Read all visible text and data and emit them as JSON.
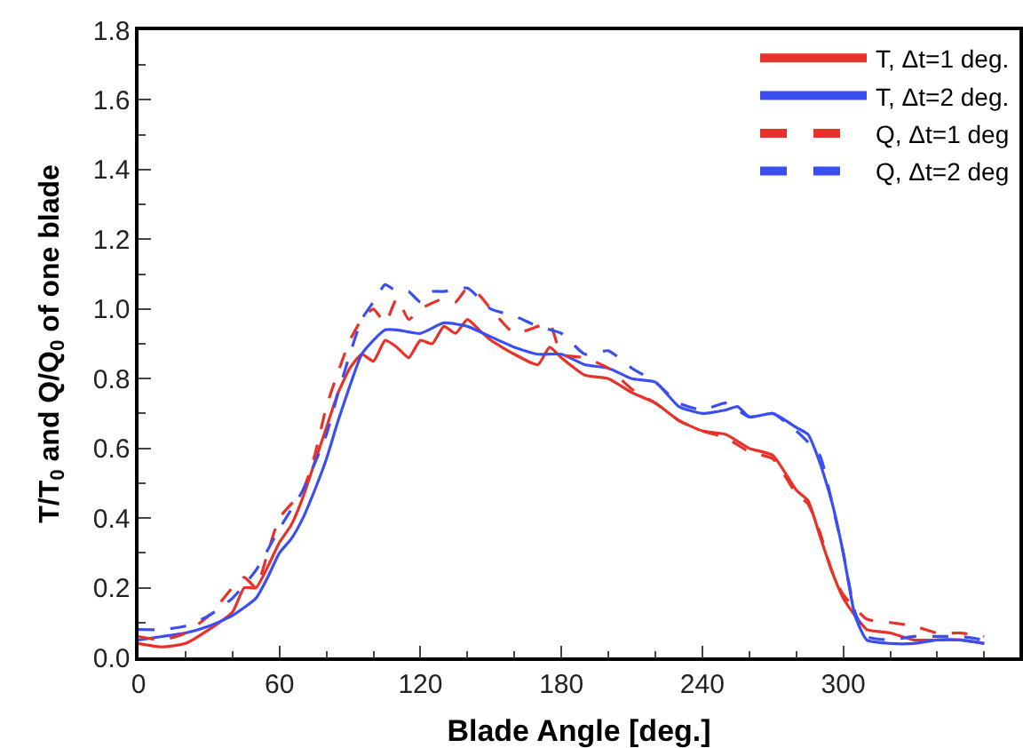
{
  "chart_data": {
    "type": "line",
    "xlabel": "Blade Angle [deg.]",
    "ylabel": "T/T$_{0}$ and Q/Q$_{0}$ of one blade",
    "xlim": [
      0,
      375
    ],
    "xticks": [
      0,
      60,
      120,
      180,
      240,
      300
    ],
    "ylim": [
      0,
      1.8
    ],
    "yticks": [
      {
        "value": 0,
        "label": "0.0"
      },
      0.2,
      0.4,
      0.6,
      0.8,
      {
        "value": 1,
        "label": "1.0"
      },
      1.2,
      1.4,
      1.6,
      1.8
    ],
    "legend": "top right",
    "marker": "none",
    "series": [
      {
        "name": "T, Δt=1 deg.",
        "color": "#e8312b",
        "line_style": "solid",
        "x": [
          0,
          10,
          20,
          30,
          40,
          45,
          50,
          55,
          60,
          65,
          70,
          75,
          80,
          85,
          90,
          95,
          100,
          105,
          110,
          115,
          120,
          125,
          130,
          135,
          140,
          145,
          150,
          160,
          170,
          175,
          180,
          190,
          200,
          210,
          220,
          230,
          240,
          250,
          260,
          270,
          280,
          285,
          290,
          295,
          300,
          305,
          310,
          320,
          330,
          340,
          350,
          360
        ],
        "values": [
          0.04,
          0.03,
          0.04,
          0.08,
          0.13,
          0.2,
          0.2,
          0.26,
          0.33,
          0.38,
          0.46,
          0.56,
          0.66,
          0.76,
          0.83,
          0.87,
          0.85,
          0.91,
          0.89,
          0.86,
          0.91,
          0.9,
          0.95,
          0.93,
          0.97,
          0.94,
          0.91,
          0.87,
          0.84,
          0.89,
          0.86,
          0.81,
          0.8,
          0.76,
          0.73,
          0.68,
          0.65,
          0.64,
          0.6,
          0.58,
          0.48,
          0.45,
          0.35,
          0.25,
          0.17,
          0.12,
          0.08,
          0.07,
          0.05,
          0.05,
          0.05,
          0.04
        ]
      },
      {
        "name": "T, Δt=2 deg.",
        "color": "#3b4ef0",
        "line_style": "solid",
        "x": [
          0,
          10,
          20,
          30,
          40,
          50,
          55,
          60,
          65,
          70,
          75,
          80,
          85,
          90,
          95,
          100,
          105,
          110,
          120,
          130,
          140,
          150,
          160,
          170,
          180,
          190,
          200,
          210,
          220,
          230,
          240,
          250,
          255,
          260,
          270,
          280,
          285,
          290,
          295,
          300,
          305,
          310,
          320,
          330,
          340,
          350,
          360
        ],
        "values": [
          0.05,
          0.06,
          0.07,
          0.09,
          0.12,
          0.17,
          0.23,
          0.3,
          0.34,
          0.4,
          0.48,
          0.57,
          0.68,
          0.78,
          0.87,
          0.91,
          0.94,
          0.94,
          0.93,
          0.96,
          0.95,
          0.92,
          0.89,
          0.87,
          0.87,
          0.84,
          0.83,
          0.8,
          0.79,
          0.72,
          0.7,
          0.71,
          0.72,
          0.69,
          0.7,
          0.66,
          0.64,
          0.56,
          0.45,
          0.3,
          0.12,
          0.05,
          0.04,
          0.04,
          0.05,
          0.05,
          0.04
        ]
      },
      {
        "name": "Q, Δt=1 deg",
        "color": "#e8312b",
        "line_style": "dashed",
        "x": [
          0,
          10,
          20,
          30,
          40,
          45,
          50,
          55,
          60,
          70,
          75,
          80,
          85,
          90,
          95,
          100,
          105,
          110,
          115,
          120,
          130,
          135,
          140,
          145,
          150,
          160,
          170,
          175,
          180,
          190,
          200,
          210,
          220,
          230,
          240,
          250,
          260,
          270,
          280,
          285,
          290,
          295,
          300,
          310,
          320,
          330,
          340,
          350,
          360
        ],
        "values": [
          0.06,
          0.05,
          0.07,
          0.12,
          0.2,
          0.23,
          0.2,
          0.3,
          0.4,
          0.48,
          0.58,
          0.72,
          0.82,
          0.91,
          0.97,
          1.0,
          0.96,
          1.03,
          0.97,
          1.0,
          1.03,
          1.02,
          1.06,
          1.04,
          1.0,
          0.93,
          0.95,
          0.96,
          0.87,
          0.86,
          0.83,
          0.77,
          0.73,
          0.68,
          0.65,
          0.63,
          0.59,
          0.57,
          0.47,
          0.44,
          0.36,
          0.25,
          0.18,
          0.11,
          0.1,
          0.09,
          0.07,
          0.07,
          0.06
        ]
      },
      {
        "name": "Q, Δt=2 deg",
        "color": "#3b4ef0",
        "line_style": "dashed",
        "x": [
          0,
          10,
          20,
          30,
          40,
          50,
          60,
          70,
          80,
          85,
          90,
          95,
          100,
          105,
          110,
          115,
          120,
          125,
          130,
          140,
          150,
          160,
          170,
          180,
          190,
          200,
          210,
          220,
          230,
          240,
          250,
          260,
          270,
          280,
          290,
          295,
          300,
          305,
          310,
          320,
          330,
          340,
          350,
          360
        ],
        "values": [
          0.08,
          0.08,
          0.09,
          0.12,
          0.17,
          0.25,
          0.37,
          0.48,
          0.64,
          0.76,
          0.87,
          0.97,
          1.02,
          1.07,
          1.05,
          1.05,
          1.02,
          1.05,
          1.05,
          1.06,
          1.0,
          0.98,
          0.95,
          0.93,
          0.87,
          0.88,
          0.83,
          0.79,
          0.73,
          0.71,
          0.73,
          0.69,
          0.7,
          0.65,
          0.58,
          0.45,
          0.3,
          0.13,
          0.06,
          0.05,
          0.06,
          0.06,
          0.06,
          0.05
        ]
      }
    ]
  }
}
